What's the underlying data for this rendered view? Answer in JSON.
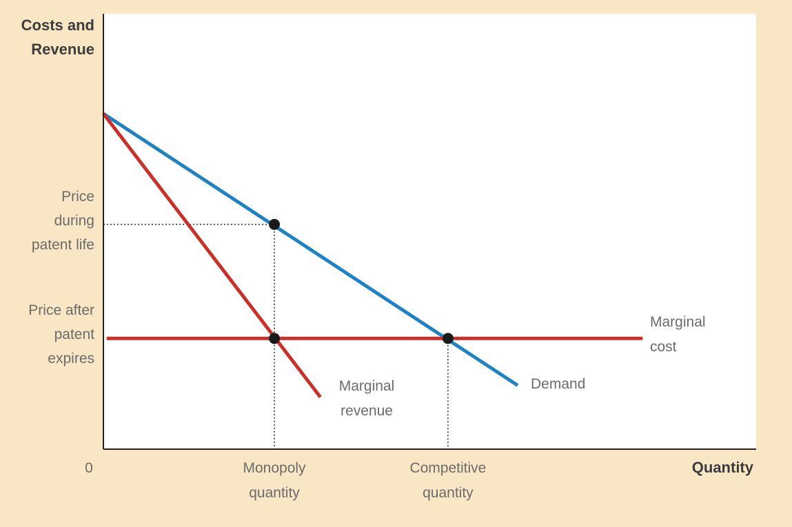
{
  "chart_data": {
    "type": "line",
    "title": "",
    "ylabel": [
      "Costs and",
      "Revenue"
    ],
    "xlabel": "Quantity",
    "origin_label": "0",
    "y_ticks": [
      {
        "key": "price_during",
        "lines": [
          "Price",
          "during",
          "patent life"
        ]
      },
      {
        "key": "price_after",
        "lines": [
          "Price after",
          "patent",
          "expires"
        ]
      }
    ],
    "x_ticks": [
      {
        "key": "monopoly_q",
        "lines": [
          "Monopoly",
          "quantity"
        ]
      },
      {
        "key": "competitive_q",
        "lines": [
          "Competitive",
          "quantity"
        ]
      }
    ],
    "xlim": [
      0,
      10
    ],
    "ylim": [
      0,
      10
    ],
    "key_values": {
      "monopoly_q": 2.6,
      "competitive_q": 5.24,
      "price_during": 6.7,
      "price_after": 3.3
    },
    "series": [
      {
        "id": "demand",
        "name": "Demand",
        "color": "#1f82c4",
        "x": [
          0,
          6.3
        ],
        "y": [
          10.0,
          1.9
        ],
        "label_lines": [
          "Demand"
        ]
      },
      {
        "id": "marginal_revenue",
        "name": "Marginal revenue",
        "color": "#c8302a",
        "x": [
          0,
          3.3
        ],
        "y": [
          10.0,
          1.55
        ],
        "label_lines": [
          "Marginal",
          "revenue"
        ]
      },
      {
        "id": "marginal_cost",
        "name": "Marginal cost",
        "color": "#c8302a",
        "x": [
          0.05,
          8.2
        ],
        "y": [
          3.3,
          3.3
        ],
        "label_lines": [
          "Marginal",
          "cost"
        ]
      }
    ],
    "points": [
      {
        "name": "monopoly-price-point",
        "x": 2.6,
        "y": 6.7
      },
      {
        "name": "mr-mc-intersection",
        "x": 2.6,
        "y": 3.3
      },
      {
        "name": "competitive-point",
        "x": 5.24,
        "y": 3.3
      }
    ],
    "guides": [
      {
        "name": "price-during-guide",
        "from": [
          0,
          6.7
        ],
        "to": [
          2.6,
          6.7
        ]
      },
      {
        "name": "monopoly-quantity-guide",
        "from": [
          2.6,
          6.7
        ],
        "to": [
          2.6,
          0
        ]
      },
      {
        "name": "competitive-quantity-guide",
        "from": [
          5.24,
          3.3
        ],
        "to": [
          5.24,
          0
        ]
      }
    ],
    "grid": false,
    "legend": "none"
  }
}
